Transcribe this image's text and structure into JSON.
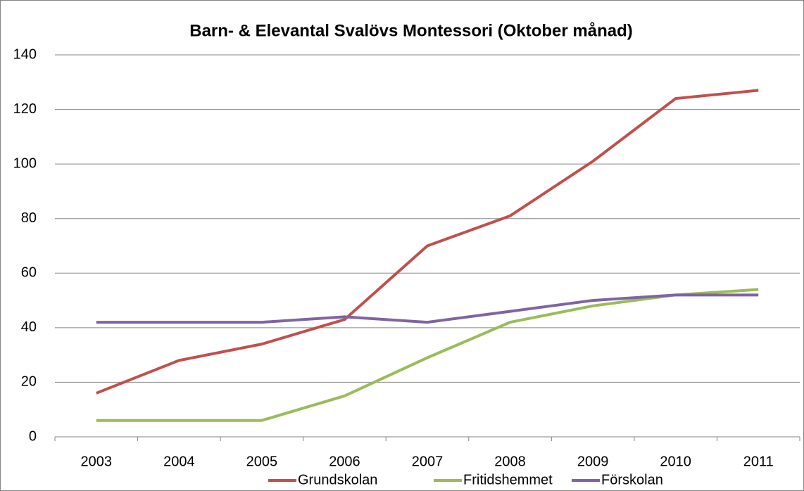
{
  "chart_data": {
    "type": "line",
    "title": "Barn- & Elevantal Svalövs Montessori (Oktober månad)",
    "categories": [
      "2003",
      "2004",
      "2005",
      "2006",
      "2007",
      "2008",
      "2009",
      "2010",
      "2011"
    ],
    "series": [
      {
        "name": "Grundskolan",
        "color": "#c0504d",
        "values": [
          16,
          28,
          34,
          43,
          70,
          81,
          101,
          124,
          127
        ]
      },
      {
        "name": "Fritidshemmet",
        "color": "#9bbb59",
        "values": [
          6,
          6,
          6,
          15,
          29,
          42,
          48,
          52,
          54
        ]
      },
      {
        "name": "Förskolan",
        "color": "#8064a2",
        "values": [
          42,
          42,
          42,
          44,
          42,
          46,
          50,
          52,
          52
        ]
      }
    ],
    "ylim": [
      0,
      140
    ],
    "yticks": [
      0,
      20,
      40,
      60,
      80,
      100,
      120,
      140
    ],
    "grid": true,
    "legend": "bottom"
  }
}
